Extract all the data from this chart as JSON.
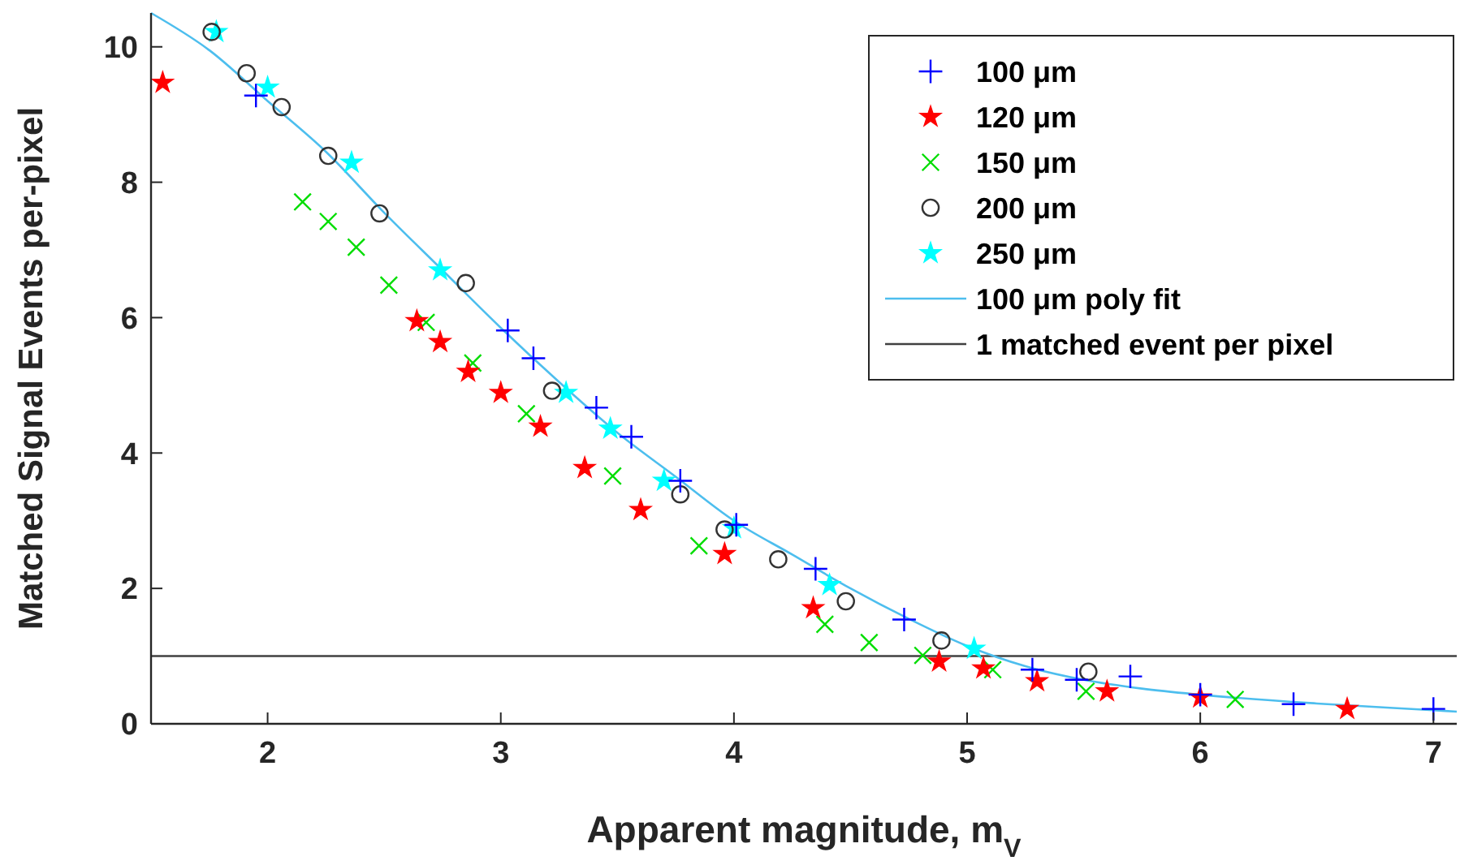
{
  "chart_data": {
    "type": "scatter",
    "xlabel": "Apparent magnitude, m$_{V}$",
    "ylabel": "Matched Signal Events per-pixel",
    "xlim": [
      1.5,
      7.1
    ],
    "ylim": [
      0,
      10.5
    ],
    "xticks": [
      2,
      3,
      4,
      5,
      6,
      7
    ],
    "yticks": [
      0,
      2,
      4,
      6,
      8,
      10
    ],
    "grid": false,
    "legend": "top right",
    "series": [
      {
        "name": "100 μm",
        "marker": "cross",
        "color": "#0000ff",
        "x": [
          1.95,
          3.03,
          3.14,
          3.41,
          3.56,
          3.77,
          4.01,
          4.35,
          4.73,
          5.28,
          5.47,
          5.7,
          6.0,
          6.4,
          7.0
        ],
        "values": [
          9.28,
          5.81,
          5.4,
          4.67,
          4.24,
          3.59,
          2.94,
          2.29,
          1.54,
          0.8,
          0.65,
          0.7,
          0.43,
          0.29,
          0.22
        ]
      },
      {
        "name": "120 μm",
        "marker": "star",
        "color": "#ff0000",
        "x": [
          1.55,
          2.64,
          2.74,
          2.86,
          3.0,
          3.17,
          3.36,
          3.6,
          3.96,
          4.34,
          4.88,
          5.07,
          5.3,
          5.6,
          6.0,
          6.63
        ],
        "values": [
          9.47,
          5.95,
          5.64,
          5.2,
          4.89,
          4.39,
          3.78,
          3.16,
          2.51,
          1.71,
          0.92,
          0.82,
          0.63,
          0.48,
          0.39,
          0.22
        ]
      },
      {
        "name": "150 μm",
        "marker": "x",
        "color": "#00dd00",
        "x": [
          2.15,
          2.26,
          2.38,
          2.52,
          2.68,
          2.88,
          3.11,
          3.48,
          3.85,
          4.39,
          4.58,
          4.81,
          5.11,
          5.51,
          6.15
        ],
        "values": [
          7.71,
          7.42,
          7.04,
          6.48,
          5.93,
          5.33,
          4.58,
          3.66,
          2.63,
          1.47,
          1.2,
          1.01,
          0.8,
          0.48,
          0.36
        ]
      },
      {
        "name": "200 μm",
        "marker": "circle",
        "color": "#333333",
        "x": [
          1.76,
          1.91,
          2.06,
          2.26,
          2.48,
          2.85,
          3.22,
          3.77,
          3.96,
          4.19,
          4.48,
          4.89,
          5.52
        ],
        "values": [
          10.22,
          9.61,
          9.11,
          8.39,
          7.54,
          6.51,
          4.92,
          3.39,
          2.87,
          2.43,
          1.81,
          1.23,
          0.77
        ]
      },
      {
        "name": "250 μm",
        "marker": "star",
        "color": "#00ffff",
        "x": [
          1.78,
          2.0,
          2.36,
          2.74,
          3.28,
          3.47,
          3.7,
          4.0,
          4.41,
          5.03
        ],
        "values": [
          10.22,
          9.4,
          8.29,
          6.7,
          4.89,
          4.36,
          3.59,
          2.89,
          2.05,
          1.11
        ]
      },
      {
        "name": "100 μm poly fit",
        "type": "line",
        "marker": "none",
        "line_style": "solid",
        "color": "#4dbeee",
        "x": [
          1.5,
          1.75,
          2,
          2.25,
          2.5,
          2.75,
          3,
          3.25,
          3.5,
          3.75,
          4,
          4.25,
          4.5,
          4.75,
          5,
          5.25,
          5.5,
          5.75,
          6,
          6.5,
          7,
          7.1
        ],
        "values": [
          10.5,
          9.95,
          9.2,
          8.45,
          7.55,
          6.7,
          5.85,
          5.05,
          4.3,
          3.65,
          3.0,
          2.5,
          2.0,
          1.55,
          1.15,
          0.85,
          0.65,
          0.52,
          0.43,
          0.3,
          0.2,
          0.18
        ]
      }
    ],
    "ref_lines": [
      {
        "axis": "y",
        "value": 1,
        "label": "1 matched event per pixel",
        "color": "#404040"
      }
    ]
  }
}
